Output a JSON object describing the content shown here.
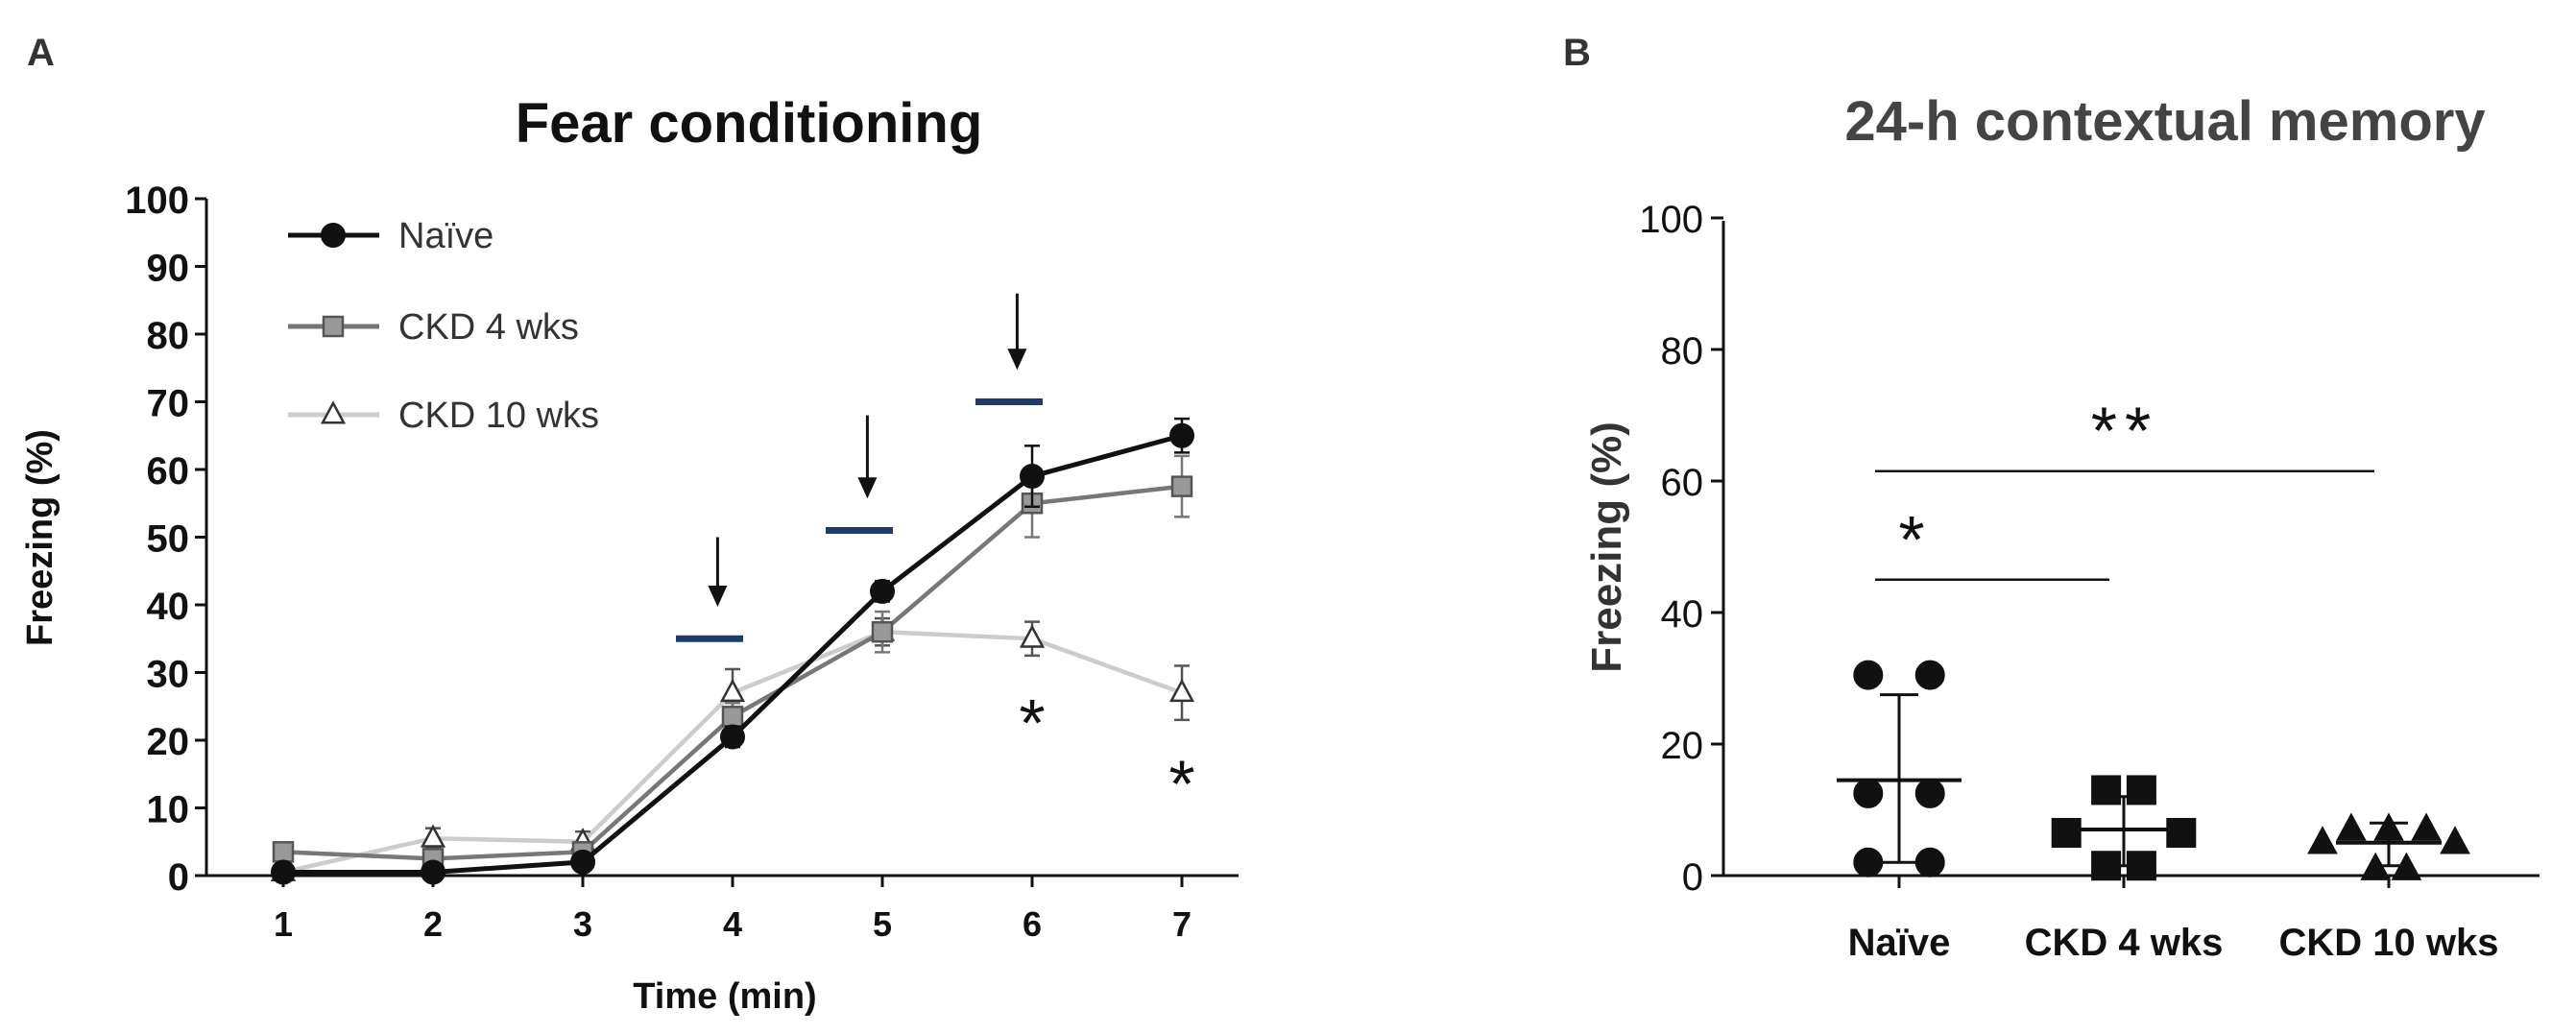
{
  "panel_a_label": "A",
  "panel_b_label": "B",
  "chart_data": [
    {
      "type": "line",
      "title": "Fear conditioning",
      "xlabel": "Time (min)",
      "ylabel": "Freezing (%)",
      "categories": [
        "1",
        "2",
        "3",
        "4",
        "5",
        "6",
        "7"
      ],
      "x": [
        1,
        2,
        3,
        4,
        5,
        6,
        7
      ],
      "ylim": [
        0,
        100
      ],
      "yticks": [
        0,
        10,
        20,
        30,
        40,
        50,
        60,
        70,
        80,
        90,
        100
      ],
      "ytick_labels": [
        "0",
        "10",
        "20",
        "30",
        "40",
        "50",
        "60",
        "70",
        "80",
        "90",
        "100"
      ],
      "series": [
        {
          "name": "Naïve",
          "marker": "circle",
          "color": "#111111",
          "values": [
            0.5,
            0.5,
            2,
            20.5,
            42,
            59,
            65
          ],
          "errors": [
            0.5,
            0.5,
            1,
            1.5,
            1.5,
            4.5,
            2.5
          ]
        },
        {
          "name": "CKD  4 wks",
          "marker": "square",
          "color": "#777777",
          "values": [
            3.5,
            2.5,
            3.5,
            23.5,
            36,
            55,
            57.5
          ],
          "errors": [
            1,
            1,
            1,
            2,
            3,
            5,
            4.5
          ]
        },
        {
          "name": "CKD  10 wks",
          "marker": "triangle",
          "color": "#cccccc",
          "values": [
            0.5,
            5.5,
            5,
            27,
            36,
            35,
            27
          ],
          "errors": [
            0.5,
            1.5,
            1.5,
            3.5,
            2,
            2.5,
            4
          ]
        }
      ],
      "shock_bars": [
        {
          "x_center": 4,
          "y": 35
        },
        {
          "x_center": 5,
          "y": 51
        },
        {
          "x_center": 6,
          "y": 70
        }
      ],
      "arrows": [
        {
          "x": 3.9,
          "y_top": 50,
          "y_bottom": 40
        },
        {
          "x": 4.9,
          "y_top": 68,
          "y_bottom": 56
        },
        {
          "x": 5.9,
          "y_top": 86,
          "y_bottom": 75
        }
      ],
      "annotations": [
        {
          "text": "*",
          "x": 6,
          "y": 24
        },
        {
          "text": "*",
          "x": 7,
          "y": 15
        }
      ],
      "legend_position": "top-left"
    },
    {
      "type": "scatter",
      "title": "24-h contextual memory",
      "ylabel": "Freezing (%)",
      "xlabel": "",
      "categories": [
        "Naïve",
        "CKD 4 wks",
        "CKD 10 wks"
      ],
      "ylim": [
        0,
        100
      ],
      "yticks": [
        0,
        20,
        40,
        60,
        80,
        100
      ],
      "ytick_labels": [
        "0",
        "20",
        "40",
        "60",
        "80",
        "100"
      ],
      "groups": [
        {
          "name": "Naïve",
          "marker": "circle",
          "points": [
            {
              "offset": -0.14,
              "value": 30.5
            },
            {
              "offset": 0.14,
              "value": 30.5
            },
            {
              "offset": -0.14,
              "value": 12.5
            },
            {
              "offset": 0.14,
              "value": 12.5
            },
            {
              "offset": -0.14,
              "value": 2
            },
            {
              "offset": 0.14,
              "value": 2
            }
          ],
          "mean": 14.5,
          "sd_low": 2,
          "sd_high": 27.5
        },
        {
          "name": "CKD 4 wks",
          "marker": "square",
          "points": [
            {
              "offset": -0.08,
              "value": 13
            },
            {
              "offset": 0.08,
              "value": 13
            },
            {
              "offset": -0.26,
              "value": 6.5
            },
            {
              "offset": 0.26,
              "value": 6.5
            },
            {
              "offset": -0.08,
              "value": 1.5
            },
            {
              "offset": 0.08,
              "value": 1.5
            }
          ],
          "mean": 7,
          "sd_low": 1.5,
          "sd_high": 12
        },
        {
          "name": "CKD 10 wks",
          "marker": "triangle",
          "points": [
            {
              "offset": -0.17,
              "value": 7
            },
            {
              "offset": 0,
              "value": 7
            },
            {
              "offset": 0.17,
              "value": 7
            },
            {
              "offset": -0.3,
              "value": 5
            },
            {
              "offset": 0.3,
              "value": 5
            },
            {
              "offset": -0.06,
              "value": 1
            },
            {
              "offset": 0.08,
              "value": 1
            }
          ],
          "mean": 5,
          "sd_low": 1.5,
          "sd_high": 8
        }
      ],
      "significance": [
        {
          "text": "*",
          "from": "Naïve",
          "to": "CKD 4 wks",
          "y": 45
        },
        {
          "text": "**",
          "from": "Naïve",
          "to": "CKD 10 wks",
          "y": 61.5
        }
      ]
    }
  ]
}
